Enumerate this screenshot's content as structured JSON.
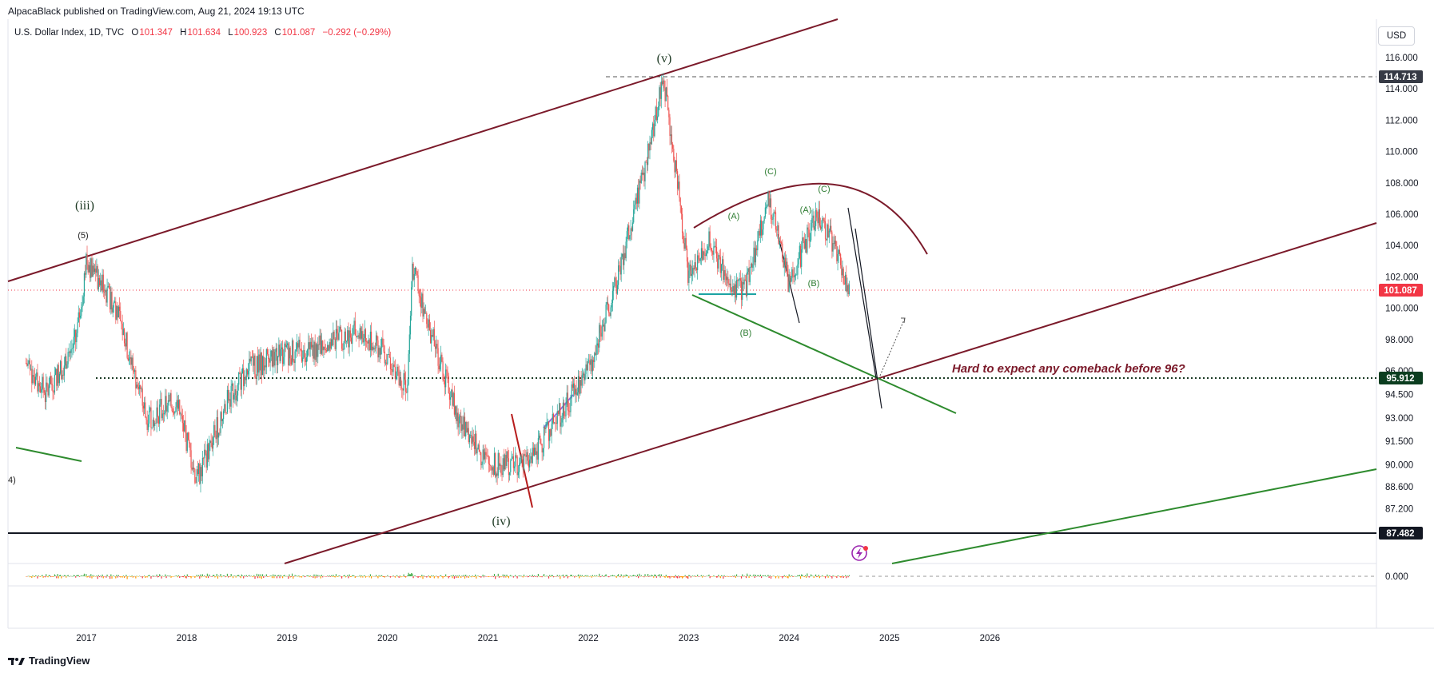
{
  "publish_line": "AlpacaBlack published on TradingView.com, Aug 21, 2024 19:13 UTC",
  "legend": {
    "symbol": "U.S. Dollar Index, 1D, TVC",
    "open_label": "O",
    "open": "101.347",
    "high_label": "H",
    "high": "101.634",
    "low_label": "L",
    "low": "100.923",
    "close_label": "C",
    "close": "101.087",
    "change": "−0.292 (−0.29%)"
  },
  "currency": "USD",
  "brand": "TradingView",
  "colors": {
    "channel": "#7b1a2a",
    "green_line": "#2e8b2e",
    "up": "#26a69a",
    "down": "#ef5350",
    "price_line": "#f23645",
    "dark_badge": "#131722",
    "green_badge": "#0b3d1f"
  },
  "chart_data": {
    "type": "line",
    "title": "U.S. Dollar Index, 1D, TVC",
    "xlabel": "",
    "ylabel": "USD",
    "x": [
      2016.4,
      2016.6,
      2016.9,
      2017.0,
      2017.3,
      2017.6,
      2017.9,
      2018.1,
      2018.4,
      2018.6,
      2018.9,
      2019.3,
      2019.7,
      2020.0,
      2020.2,
      2020.25,
      2020.4,
      2020.7,
      2021.0,
      2021.4,
      2021.8,
      2022.0,
      2022.3,
      2022.6,
      2022.75,
      2022.85,
      2023.0,
      2023.2,
      2023.4,
      2023.55,
      2023.8,
      2024.0,
      2024.15,
      2024.3,
      2024.45,
      2024.6
    ],
    "series": [
      {
        "name": "U.S. Dollar Index",
        "values": [
          96.5,
          94.5,
          98.0,
          103.0,
          100.0,
          93.0,
          94.0,
          89.0,
          94.0,
          96.0,
          97.0,
          97.5,
          98.5,
          97.0,
          95.0,
          102.8,
          99.0,
          93.0,
          90.0,
          90.2,
          94.0,
          96.0,
          102.0,
          110.0,
          114.7,
          110.0,
          102.0,
          104.5,
          101.5,
          101.0,
          107.0,
          101.5,
          104.0,
          106.0,
          104.0,
          101.087
        ]
      }
    ],
    "yticks": [
      "116.000",
      "114.000",
      "112.000",
      "110.000",
      "108.000",
      "106.000",
      "104.000",
      "102.000",
      "100.000",
      "98.000",
      "96.000",
      "94.500",
      "93.000",
      "91.500",
      "90.000",
      "88.600",
      "87.200"
    ],
    "xticks": [
      "2017",
      "2018",
      "2019",
      "2020",
      "2021",
      "2022",
      "2023",
      "2024",
      "2025",
      "2026"
    ],
    "ylim": [
      86.5,
      117.0
    ],
    "price_badges": [
      "114.713",
      "101.087",
      "95.912",
      "87.482"
    ],
    "oscillator_zero": "0.000",
    "wave_labels": {
      "iii": "(iii)",
      "five": "(5)",
      "v": "(v)",
      "iv": "(iv)",
      "four": "4)",
      "A1": "(A)",
      "B1": "(B)",
      "C1": "(C)",
      "A2": "(A)",
      "B2": "(B)",
      "C2": "(C)"
    },
    "annotation": "Hard to expect any comeback before 96?"
  }
}
